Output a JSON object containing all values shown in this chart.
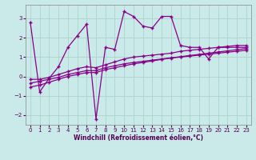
{
  "xlabel": "Windchill (Refroidissement éolien,°C)",
  "ylabel": "",
  "xlim": [
    -0.5,
    23.5
  ],
  "ylim": [
    -2.5,
    3.7
  ],
  "yticks": [
    -2,
    -1,
    0,
    1,
    2,
    3
  ],
  "xticks": [
    0,
    1,
    2,
    3,
    4,
    5,
    6,
    7,
    8,
    9,
    10,
    11,
    12,
    13,
    14,
    15,
    16,
    17,
    18,
    19,
    20,
    21,
    22,
    23
  ],
  "bg_color": "#caeaea",
  "grid_color": "#aad4cc",
  "line_color": "#880088",
  "marker": "+",
  "series": [
    [
      2.8,
      -0.8,
      -0.1,
      0.5,
      1.5,
      2.1,
      2.7,
      -2.2,
      1.5,
      1.4,
      3.35,
      3.1,
      2.6,
      2.5,
      3.1,
      3.1,
      1.6,
      1.5,
      1.5,
      0.9,
      1.5,
      1.5,
      1.5,
      1.5
    ],
    [
      -0.15,
      -0.15,
      -0.05,
      0.1,
      0.25,
      0.4,
      0.5,
      0.45,
      0.6,
      0.75,
      0.9,
      1.0,
      1.05,
      1.1,
      1.15,
      1.2,
      1.3,
      1.35,
      1.4,
      1.45,
      1.5,
      1.55,
      1.6,
      1.6
    ],
    [
      -0.35,
      -0.25,
      -0.15,
      -0.05,
      0.1,
      0.2,
      0.3,
      0.3,
      0.45,
      0.55,
      0.65,
      0.72,
      0.78,
      0.84,
      0.9,
      0.96,
      1.02,
      1.08,
      1.14,
      1.2,
      1.26,
      1.32,
      1.38,
      1.44
    ],
    [
      -0.55,
      -0.45,
      -0.3,
      -0.15,
      0.0,
      0.1,
      0.2,
      0.2,
      0.35,
      0.45,
      0.55,
      0.65,
      0.72,
      0.8,
      0.88,
      0.95,
      1.0,
      1.05,
      1.1,
      1.15,
      1.2,
      1.25,
      1.3,
      1.35
    ]
  ]
}
